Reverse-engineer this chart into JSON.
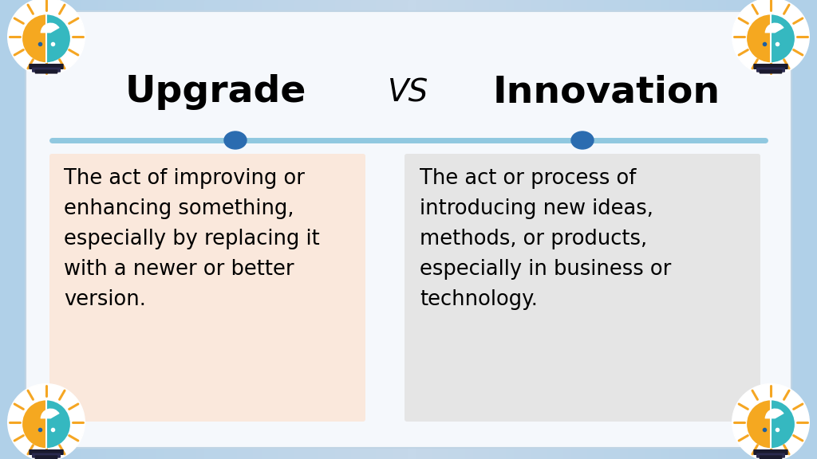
{
  "title_left": "Upgrade",
  "title_vs": "VS",
  "title_right": "Innovation",
  "left_text": "The act of improving or\nenhancing something,\nespecially by replacing it\nwith a newer or better\nversion.",
  "right_text": "The act or process of\nintroducing new ideas,\nmethods, or products,\nespecially in business or\ntechnology.",
  "bg_gradient_left": "#c5d8ea",
  "bg_gradient_right": "#d8e6f0",
  "inner_bg_color": "#f5f8fc",
  "left_box_color": "#fae8dc",
  "right_box_color": "#e5e5e5",
  "line_color": "#90c8e0",
  "dot_color": "#2b6cb0",
  "title_fontsize": 34,
  "vs_fontsize": 28,
  "text_fontsize": 18.5,
  "border_color": "#a0b8cc",
  "inner_border_color": "#c0d4e4"
}
